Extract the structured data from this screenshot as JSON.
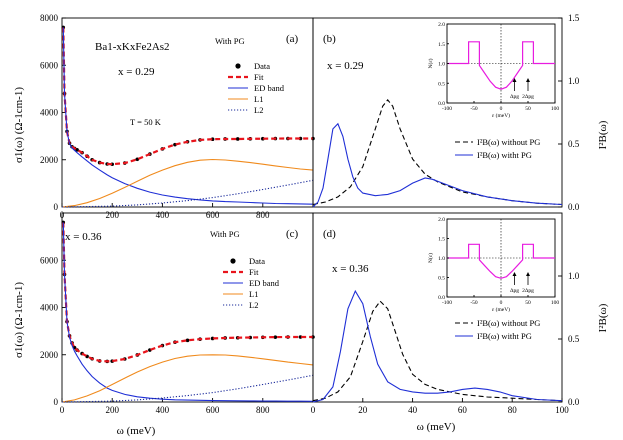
{
  "chart_data": [
    {
      "panel": "(a)",
      "type": "line",
      "title": "Ba1-xKxFe2As2",
      "annotations": [
        "x = 0.29",
        "With PG",
        "T = 50 K"
      ],
      "xlabel": "",
      "ylabel": "σ1(ω) (Ω-1cm-1)",
      "xlim": [
        0,
        1000
      ],
      "ylim": [
        0,
        8000
      ],
      "xticks": [
        "0",
        "200",
        "400",
        "600",
        "800"
      ],
      "yticks": [
        "0",
        "2000",
        "4000",
        "6000",
        "8000"
      ],
      "legend_position": "top-right",
      "series": [
        {
          "name": "Data",
          "style": "dots",
          "color": "#000000",
          "x": [
            5,
            10,
            20,
            30,
            40,
            50,
            60,
            80,
            100,
            120,
            150,
            180,
            200,
            250,
            300,
            350,
            400,
            450,
            500,
            550,
            600,
            650,
            700,
            750,
            800,
            850,
            900,
            950,
            1000
          ],
          "y": [
            7600,
            4800,
            3200,
            2700,
            2550,
            2480,
            2420,
            2300,
            2150,
            2000,
            1880,
            1820,
            1810,
            1860,
            2020,
            2240,
            2460,
            2640,
            2760,
            2840,
            2870,
            2880,
            2880,
            2885,
            2890,
            2895,
            2900,
            2900,
            2900
          ]
        },
        {
          "name": "Fit",
          "style": "dash",
          "color": "#e8141c",
          "x": [
            5,
            10,
            20,
            30,
            40,
            50,
            60,
            80,
            100,
            120,
            150,
            180,
            200,
            250,
            300,
            350,
            400,
            450,
            500,
            550,
            600,
            650,
            700,
            750,
            800,
            850,
            900,
            950,
            1000
          ],
          "y": [
            7600,
            4800,
            3200,
            2700,
            2550,
            2480,
            2420,
            2300,
            2150,
            2000,
            1880,
            1820,
            1810,
            1860,
            2020,
            2240,
            2460,
            2640,
            2760,
            2840,
            2870,
            2880,
            2880,
            2885,
            2890,
            2895,
            2900,
            2900,
            2900
          ]
        },
        {
          "name": "ED band",
          "style": "solid",
          "color": "#1f2fd6",
          "x": [
            5,
            10,
            20,
            30,
            40,
            50,
            60,
            80,
            100,
            120,
            150,
            180,
            200,
            250,
            300,
            350,
            400,
            450,
            500,
            550,
            600,
            650,
            700,
            750,
            800,
            850,
            900,
            950,
            1000
          ],
          "y": [
            7600,
            4800,
            3200,
            2680,
            2500,
            2400,
            2300,
            2120,
            1950,
            1780,
            1560,
            1360,
            1240,
            990,
            790,
            630,
            510,
            420,
            350,
            300,
            260,
            230,
            210,
            190,
            170,
            150,
            140,
            130,
            120
          ]
        },
        {
          "name": "L1",
          "style": "solid",
          "color": "#f08a1c",
          "x": [
            0,
            50,
            100,
            150,
            200,
            250,
            300,
            350,
            400,
            450,
            500,
            550,
            600,
            650,
            700,
            750,
            800,
            850,
            900,
            950,
            1000
          ],
          "y": [
            0,
            60,
            180,
            360,
            580,
            830,
            1090,
            1340,
            1560,
            1750,
            1890,
            1980,
            2010,
            1990,
            1940,
            1880,
            1810,
            1740,
            1670,
            1610,
            1560
          ]
        },
        {
          "name": "L2",
          "style": "dot",
          "color": "#1a2a9a",
          "x": [
            0,
            100,
            200,
            300,
            400,
            500,
            600,
            700,
            800,
            900,
            1000
          ],
          "y": [
            0,
            15,
            40,
            90,
            170,
            270,
            400,
            560,
            740,
            930,
            1130
          ]
        }
      ]
    },
    {
      "panel": "(b)",
      "type": "line",
      "annotations": [
        "x = 0.29"
      ],
      "xlabel": "",
      "ylabel": "I²B(ω)",
      "xlim": [
        0,
        100
      ],
      "ylim": [
        0,
        1.5
      ],
      "yticks": [
        "0.0",
        "0.5",
        "1.0",
        "1.5"
      ],
      "legend_position": "center-right",
      "series": [
        {
          "name": "I²B(ω) without PG",
          "style": "dash",
          "color": "#000000",
          "x": [
            0,
            5,
            10,
            15,
            20,
            25,
            28,
            30,
            32,
            35,
            40,
            45,
            50,
            60,
            70,
            80,
            90,
            100
          ],
          "y": [
            0.02,
            0.04,
            0.08,
            0.16,
            0.32,
            0.62,
            0.8,
            0.85,
            0.8,
            0.62,
            0.38,
            0.26,
            0.2,
            0.12,
            0.08,
            0.05,
            0.03,
            0.02
          ]
        },
        {
          "name": "I²B(ω) witht PG",
          "style": "solid",
          "color": "#1f2fd6",
          "x": [
            0,
            2,
            4,
            6,
            8,
            10,
            12,
            14,
            16,
            18,
            20,
            25,
            30,
            35,
            40,
            45,
            48,
            52,
            60,
            70,
            80,
            90,
            100
          ],
          "y": [
            0.0,
            0.04,
            0.15,
            0.38,
            0.62,
            0.66,
            0.56,
            0.38,
            0.24,
            0.15,
            0.11,
            0.09,
            0.1,
            0.13,
            0.19,
            0.23,
            0.22,
            0.19,
            0.13,
            0.08,
            0.05,
            0.03,
            0.02
          ]
        }
      ],
      "inset": {
        "xlabel": "ε (meV)",
        "ylabel": "N(ε)",
        "xlim": [
          -100,
          100
        ],
        "ylim": [
          0,
          2
        ],
        "xticks": [
          "-100",
          "-50",
          "0",
          "50",
          "100"
        ],
        "yticks": [
          "0.0",
          "0.5",
          "1.0",
          "1.5",
          "2.0"
        ],
        "markers": [
          "Δpg",
          "2Δpg"
        ],
        "x": [
          -100,
          -60,
          -60,
          -50,
          -50,
          -40,
          -40,
          -30,
          -20,
          -10,
          0,
          10,
          20,
          30,
          40,
          40,
          50,
          50,
          60,
          60,
          100
        ],
        "y": [
          1.0,
          1.0,
          1.55,
          1.55,
          1.55,
          1.55,
          0.95,
          0.75,
          0.55,
          0.4,
          0.35,
          0.4,
          0.55,
          0.75,
          0.95,
          1.55,
          1.55,
          1.55,
          1.55,
          1.0,
          1.0
        ]
      }
    },
    {
      "panel": "(c)",
      "type": "line",
      "annotations": [
        "x = 0.36",
        "With PG"
      ],
      "xlabel": "ω (meV)",
      "ylabel": "σ1(ω) (Ω-1cm-1)",
      "xlim": [
        0,
        1000
      ],
      "ylim": [
        0,
        8000
      ],
      "xticks": [
        "0",
        "200",
        "400",
        "600",
        "800"
      ],
      "yticks": [
        "0",
        "2000",
        "4000",
        "6000"
      ],
      "legend_position": "top-right",
      "series": [
        {
          "name": "Data",
          "style": "dots",
          "color": "#000000",
          "x": [
            5,
            10,
            20,
            30,
            40,
            50,
            60,
            80,
            100,
            120,
            150,
            180,
            200,
            250,
            300,
            350,
            400,
            450,
            500,
            550,
            600,
            650,
            700,
            750,
            800,
            850,
            900,
            950,
            1000
          ],
          "y": [
            7600,
            5400,
            3400,
            2800,
            2500,
            2300,
            2200,
            2050,
            1930,
            1830,
            1740,
            1720,
            1730,
            1820,
            1990,
            2200,
            2390,
            2530,
            2610,
            2660,
            2690,
            2710,
            2720,
            2730,
            2740,
            2745,
            2750,
            2750,
            2750
          ]
        },
        {
          "name": "Fit",
          "style": "dash",
          "color": "#e8141c",
          "x": [
            5,
            10,
            20,
            30,
            40,
            50,
            60,
            80,
            100,
            120,
            150,
            180,
            200,
            250,
            300,
            350,
            400,
            450,
            500,
            550,
            600,
            650,
            700,
            750,
            800,
            850,
            900,
            950,
            1000
          ],
          "y": [
            7600,
            5400,
            3400,
            2800,
            2500,
            2300,
            2200,
            2050,
            1930,
            1830,
            1740,
            1720,
            1730,
            1820,
            1990,
            2200,
            2390,
            2530,
            2610,
            2660,
            2690,
            2710,
            2720,
            2730,
            2740,
            2745,
            2750,
            2750,
            2750
          ]
        },
        {
          "name": "ED band",
          "style": "solid",
          "color": "#1f2fd6",
          "x": [
            5,
            10,
            20,
            30,
            40,
            50,
            60,
            80,
            100,
            120,
            150,
            180,
            200,
            250,
            300,
            350,
            400,
            450,
            500,
            550,
            600,
            650,
            700,
            750,
            800,
            850,
            900,
            950,
            1000
          ],
          "y": [
            7600,
            5400,
            3400,
            2750,
            2400,
            2150,
            1950,
            1600,
            1320,
            1080,
            800,
            590,
            490,
            320,
            220,
            160,
            120,
            95,
            80,
            70,
            60,
            55,
            50,
            45,
            40,
            38,
            35,
            33,
            30
          ]
        },
        {
          "name": "L1",
          "style": "solid",
          "color": "#f08a1c",
          "x": [
            0,
            50,
            100,
            150,
            200,
            250,
            300,
            350,
            400,
            450,
            500,
            550,
            600,
            650,
            700,
            750,
            800,
            850,
            900,
            950,
            1000
          ],
          "y": [
            0,
            90,
            260,
            480,
            740,
            1010,
            1270,
            1500,
            1690,
            1840,
            1940,
            1990,
            2000,
            1990,
            1950,
            1890,
            1830,
            1760,
            1690,
            1630,
            1570
          ]
        },
        {
          "name": "L2",
          "style": "dot",
          "color": "#1a2a9a",
          "x": [
            0,
            100,
            200,
            300,
            400,
            500,
            600,
            700,
            800,
            900,
            1000
          ],
          "y": [
            0,
            15,
            40,
            90,
            170,
            270,
            400,
            560,
            740,
            930,
            1130
          ]
        }
      ]
    },
    {
      "panel": "(d)",
      "type": "line",
      "annotations": [
        "x = 0.36"
      ],
      "xlabel": "ω (meV)",
      "ylabel": "I²B(ω)",
      "xlim": [
        0,
        100
      ],
      "ylim": [
        0,
        1.5
      ],
      "xticks": [
        "0",
        "20",
        "40",
        "60",
        "80",
        "100"
      ],
      "yticks": [
        "0.0",
        "0.5",
        "1.0"
      ],
      "legend_position": "center-right",
      "series": [
        {
          "name": "I²B(ω) without PG",
          "style": "dash",
          "color": "#000000",
          "x": [
            0,
            5,
            10,
            15,
            20,
            24,
            27,
            30,
            33,
            36,
            40,
            45,
            50,
            60,
            70,
            80,
            90,
            100
          ],
          "y": [
            0.01,
            0.03,
            0.08,
            0.2,
            0.48,
            0.72,
            0.8,
            0.74,
            0.56,
            0.38,
            0.22,
            0.14,
            0.1,
            0.06,
            0.04,
            0.03,
            0.02,
            0.01
          ]
        },
        {
          "name": "I²B(ω) witht PG",
          "style": "solid",
          "color": "#1f2fd6",
          "x": [
            0,
            4,
            8,
            11,
            14,
            17,
            20,
            23,
            26,
            30,
            35,
            40,
            45,
            50,
            55,
            60,
            65,
            70,
            75,
            80,
            90,
            100
          ],
          "y": [
            0.0,
            0.02,
            0.12,
            0.4,
            0.74,
            0.88,
            0.78,
            0.52,
            0.3,
            0.16,
            0.1,
            0.08,
            0.07,
            0.07,
            0.08,
            0.1,
            0.11,
            0.1,
            0.08,
            0.05,
            0.02,
            0.01
          ]
        }
      ],
      "inset": {
        "xlabel": "ε (meV)",
        "ylabel": "N(ε)",
        "xlim": [
          -100,
          100
        ],
        "ylim": [
          0,
          2
        ],
        "xticks": [
          "-100",
          "-50",
          "0",
          "50",
          "100"
        ],
        "yticks": [
          "0.0",
          "0.5",
          "1.0",
          "1.5",
          "2.0"
        ],
        "markers": [
          "Δpg",
          "2Δpg"
        ],
        "x": [
          -100,
          -60,
          -60,
          -40,
          -40,
          -30,
          -20,
          -10,
          0,
          10,
          20,
          30,
          40,
          40,
          60,
          60,
          100
        ],
        "y": [
          1.0,
          1.0,
          1.35,
          1.35,
          0.95,
          0.8,
          0.65,
          0.52,
          0.48,
          0.52,
          0.65,
          0.8,
          0.95,
          1.35,
          1.35,
          1.0,
          1.0
        ]
      }
    }
  ]
}
